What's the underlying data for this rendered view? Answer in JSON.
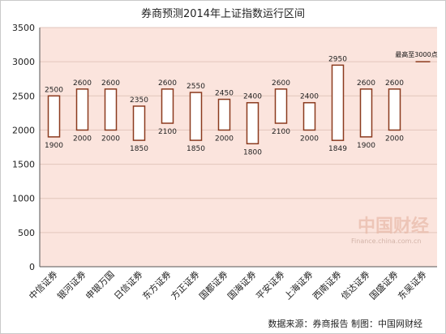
{
  "chart_data": {
    "type": "bar",
    "title": "券商预测2014年上证指数运行区间",
    "categories": [
      "中信证券",
      "银河证券",
      "申银万国",
      "日信证券",
      "东方证券",
      "方正证券",
      "国都证券",
      "国海证券",
      "平安证券",
      "上海证券",
      "西南证券",
      "信达证券",
      "国盛证券",
      "东吴证券"
    ],
    "series": [
      {
        "values_high": [
          2500,
          2600,
          2600,
          2350,
          2600,
          2550,
          2450,
          2400,
          2600,
          2400,
          2950,
          2600,
          2600,
          3000
        ]
      },
      {
        "values_low": [
          1900,
          2000,
          2000,
          1850,
          2100,
          1850,
          2000,
          1800,
          2100,
          2000,
          1849,
          1900,
          2000,
          3000
        ]
      }
    ],
    "high": [
      2500,
      2600,
      2600,
      2350,
      2600,
      2550,
      2450,
      2400,
      2600,
      2400,
      2950,
      2600,
      2600,
      3000
    ],
    "low": [
      1900,
      2000,
      2000,
      1850,
      2100,
      1850,
      2000,
      1800,
      2100,
      2000,
      1849,
      1900,
      2000,
      3000
    ],
    "ylim": [
      0,
      3500
    ],
    "yticks": [
      0,
      500,
      1000,
      1500,
      2000,
      2500,
      3000,
      3500
    ],
    "annotation": "最高至3000点",
    "grid": true,
    "colors": {
      "plot_bg": "#fbe4dd",
      "box_fill": "#ffffff",
      "box_stroke": "#8b3a1e",
      "grid": "#e2c6bc",
      "axis": "#555555"
    }
  },
  "source": "数据来源：券商报告 制图：中国网财经",
  "watermark": {
    "brand": "中国财经",
    "url": "Finance.china.com.cn"
  }
}
